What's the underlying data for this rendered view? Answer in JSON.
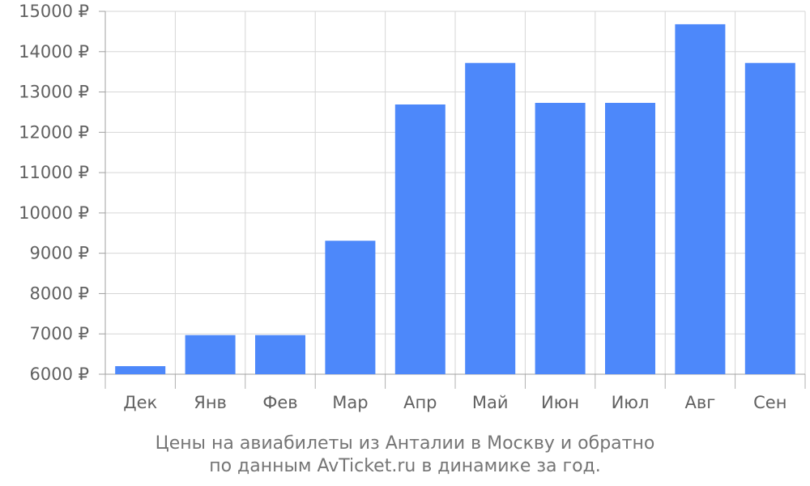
{
  "chart_data": {
    "type": "bar",
    "categories": [
      "Дек",
      "Янв",
      "Фев",
      "Мар",
      "Апр",
      "Май",
      "Июн",
      "Июл",
      "Авг",
      "Сен"
    ],
    "values": [
      6200,
      6970,
      6970,
      9310,
      12690,
      13720,
      12730,
      12730,
      14680,
      13720
    ],
    "y_ticks": [
      "6000 ₽",
      "7000 ₽",
      "8000 ₽",
      "9000 ₽",
      "10000 ₽",
      "11000 ₽",
      "12000 ₽",
      "13000 ₽",
      "14000 ₽",
      "15000 ₽"
    ],
    "ylim": [
      6000,
      15000
    ],
    "bar_color": "#4d88fa",
    "grid": true,
    "caption_line1": "Цены на авиабилеты из Анталии в Москву и обратно",
    "caption_line2": "по данным AvTicket.ru в динамике за год."
  }
}
